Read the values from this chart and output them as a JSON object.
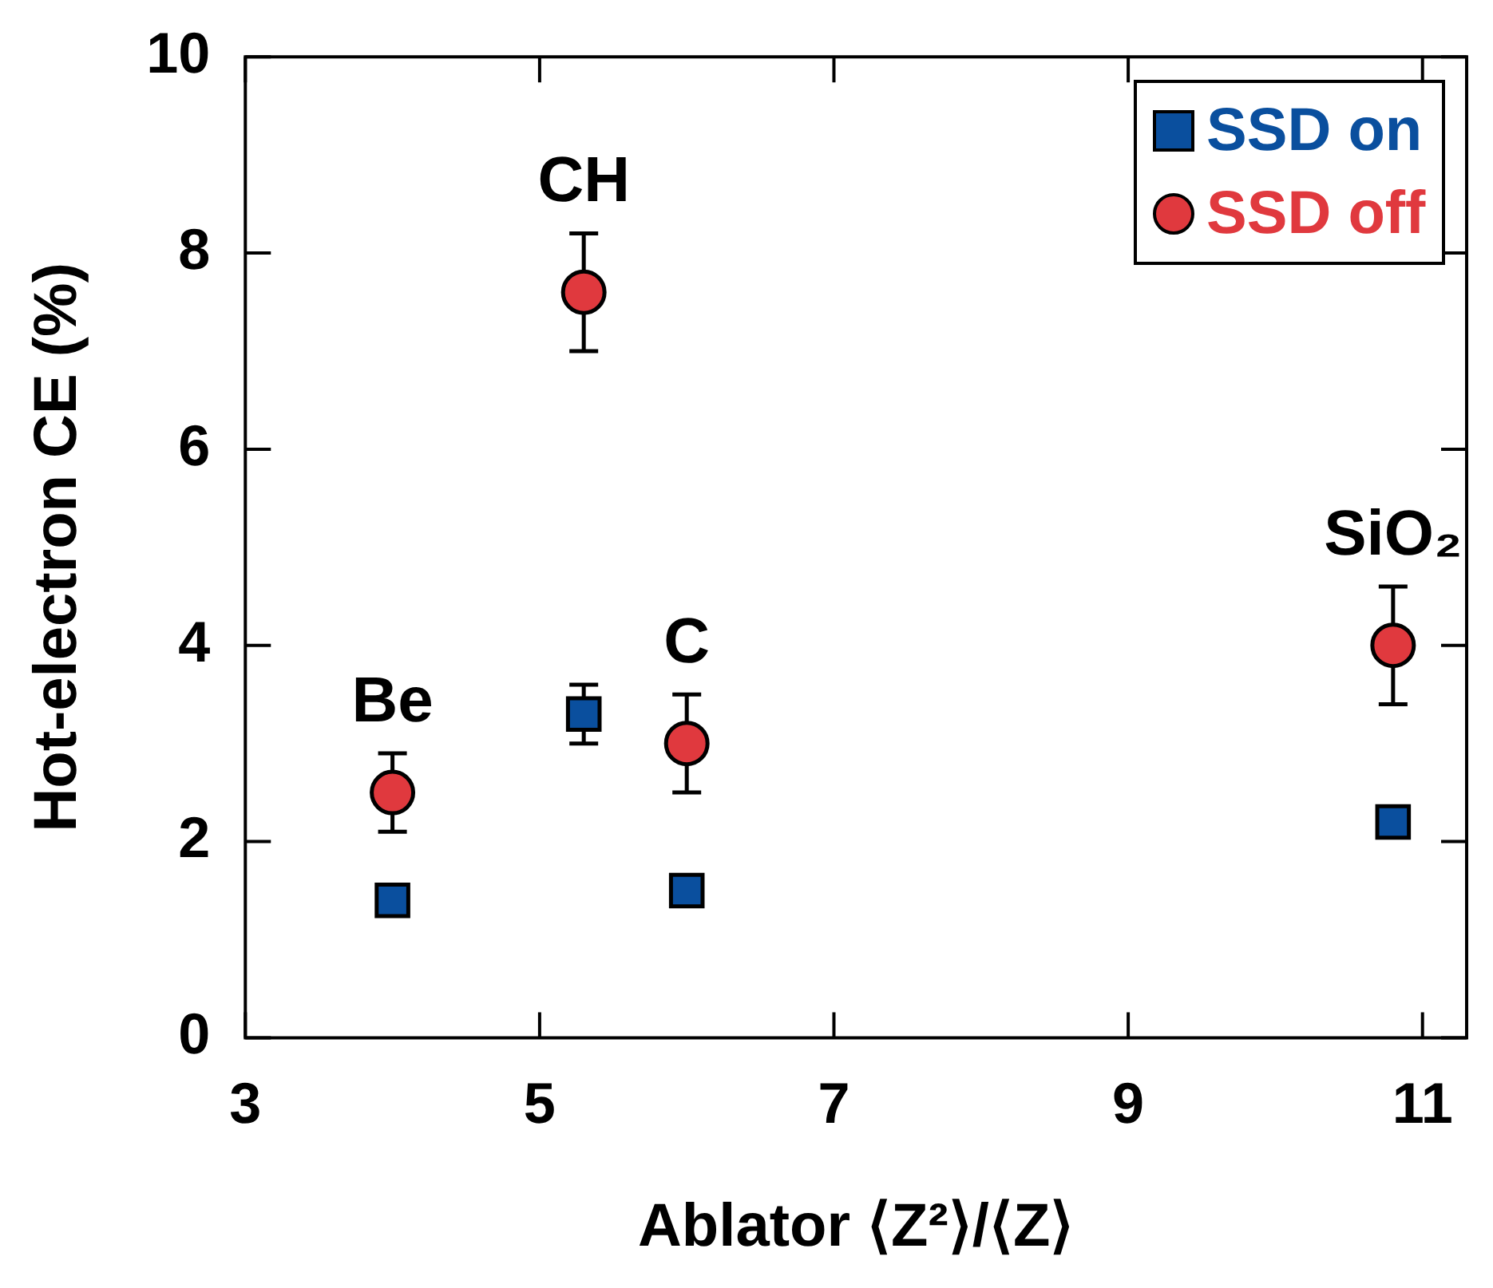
{
  "chart_data": {
    "type": "scatter",
    "xlabel": "Ablator ⟨Z²⟩/⟨Z⟩",
    "ylabel": "Hot-electron CE (%)",
    "x": [
      4.0,
      5.3,
      6.0,
      10.8
    ],
    "series": [
      {
        "name": "SSD on",
        "color": "#0a4f9e",
        "marker": "square",
        "values": [
          1.4,
          3.3,
          1.5,
          2.2
        ],
        "errors": [
          null,
          [
            3.0,
            3.6
          ],
          null,
          null
        ]
      },
      {
        "name": "SSD off",
        "color": "#e0393e",
        "marker": "circle",
        "values": [
          2.5,
          7.6,
          3.0,
          4.0
        ],
        "errors": [
          [
            2.1,
            2.9
          ],
          [
            7.0,
            8.2
          ],
          [
            2.5,
            3.5
          ],
          [
            3.4,
            4.6
          ]
        ]
      }
    ],
    "annotations": [
      {
        "text": "Be",
        "x": 4.0,
        "y": 2.5
      },
      {
        "text": "CH",
        "x": 5.3,
        "y": 7.6
      },
      {
        "text": "C",
        "x": 6.0,
        "y": 3.0
      },
      {
        "text": "SiO₂",
        "x": 10.8,
        "y": 4.0
      }
    ],
    "xlim": [
      3,
      11.3
    ],
    "xticks": [
      3,
      5,
      7,
      9,
      11
    ],
    "ylim": [
      0,
      10
    ],
    "yticks": [
      0,
      2,
      4,
      6,
      8,
      10
    ],
    "grid": false,
    "legend": "top right"
  }
}
